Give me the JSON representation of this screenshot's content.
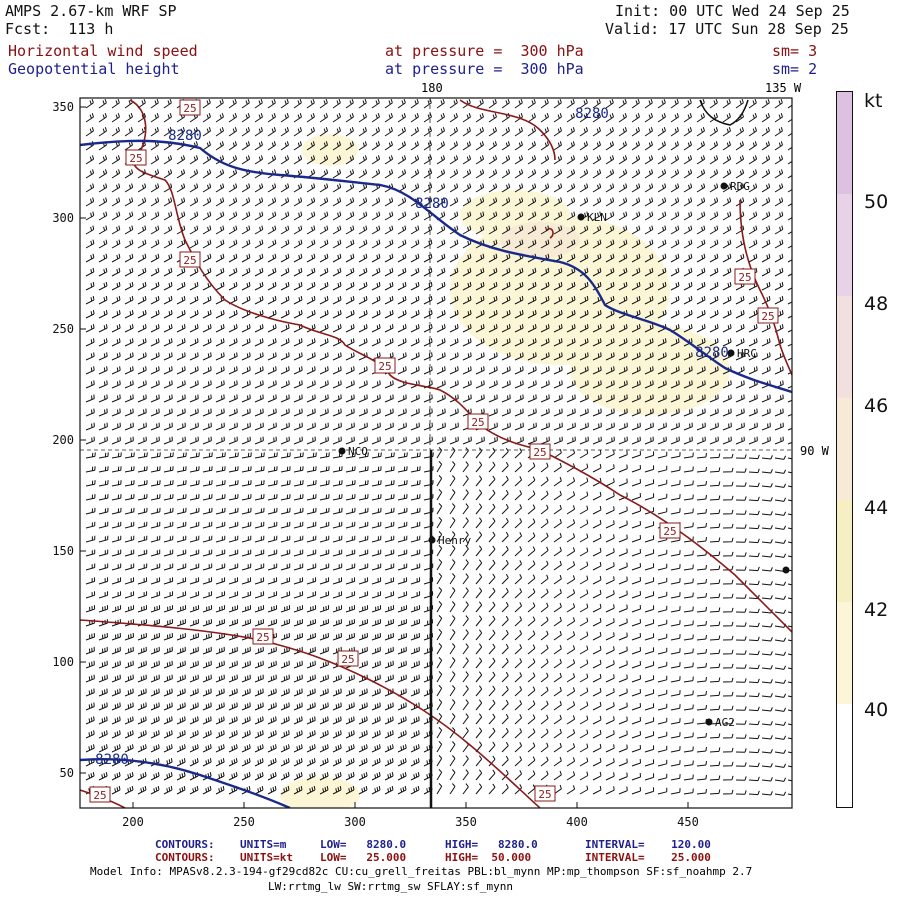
{
  "header": {
    "title": "AMPS 2.67-km WRF SP",
    "forecast": "Fcst:  113 h",
    "init": "Init: 00 UTC Wed 24 Sep 25",
    "valid": "Valid: 17 UTC Sun 28 Sep 25",
    "field1_name": "Horizontal wind speed",
    "field1_level": "at pressure =  300 hPa",
    "field1_smooth": "sm= 3",
    "field2_name": "Geopotential height",
    "field2_level": "at pressure =  300 hPa",
    "field2_smooth": "sm= 2"
  },
  "map": {
    "meridian_label_top": "180",
    "meridian_label_right_top": "135 W",
    "parallel_label_right": "90 W",
    "x_ticks": [
      "200",
      "250",
      "300",
      "350",
      "400",
      "450"
    ],
    "y_ticks": [
      "350",
      "300",
      "250",
      "200",
      "150",
      "100",
      "50"
    ],
    "stations": [
      {
        "name": "RDG"
      },
      {
        "name": "KLN"
      },
      {
        "name": "HRC"
      },
      {
        "name": "NCO"
      },
      {
        "name": "Henry"
      },
      {
        "name": "AG2"
      },
      {
        "name": ""
      }
    ],
    "height_contour_label": "8280",
    "wind_contour_label": "25",
    "colors": {
      "height_contour": "#1a2a8a",
      "wind_contour": "#8b1a1a",
      "barb": "#111111",
      "shade_light": "#fdf9d2"
    }
  },
  "colorbar": {
    "units": "kt",
    "labels": [
      "50",
      "48",
      "46",
      "44",
      "42",
      "40"
    ],
    "colors": [
      "#ffffff",
      "#fbf6d8",
      "#f6efc3",
      "#f7ead7",
      "#f2dfe0",
      "#e7d2e8",
      "#dcc2e0"
    ]
  },
  "footer": {
    "line1_label": "CONTOURS:",
    "line1_units": "UNITS=m",
    "line1_low": "LOW=   8280.0",
    "line1_high": "HIGH=   8280.0",
    "line1_interval": "INTERVAL=    120.00",
    "line2_label": "CONTOURS:",
    "line2_units": "UNITS=kt",
    "line2_low": "LOW=   25.000",
    "line2_high": "HIGH=  50.000",
    "line2_interval": "INTERVAL=    25.000",
    "model_info": "Model Info: MPASv8.2.3-194-gf29cd82c CU:cu_grell_freitas PBL:bl_mynn MP:mp_thompson SF:sf_noahmp 2.7",
    "model_info2": "LW:rrtmg_lw SW:rrtmg_sw SFLAY:sf_mynn"
  }
}
